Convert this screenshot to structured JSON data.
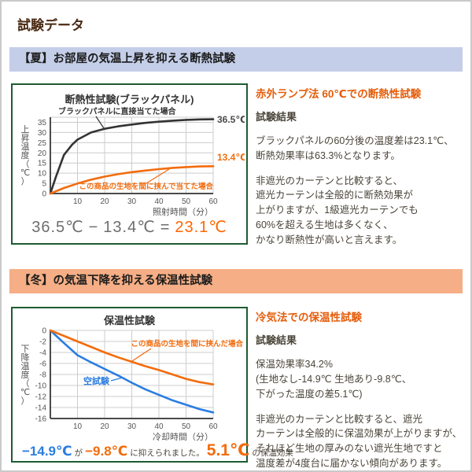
{
  "page": {
    "title": "試験データ"
  },
  "colors": {
    "accent_orange": "#f26c0d",
    "accent_blue": "#2a7de1",
    "summer_header_bg": "#c4cee8",
    "winter_header_bg": "#f5ae85",
    "chart_border_green": "#1e5b31",
    "title_brown": "#4a2a13"
  },
  "summer": {
    "header": "【夏】お部屋の気温上昇を抑える断熱試験",
    "formula": {
      "minuend": "36.5℃",
      "operator": "−",
      "subtrahend": "13.4℃",
      "equals": "=",
      "result": "23.1℃"
    },
    "aside": {
      "heading": "赤外ランプ法 60℃での断熱性試験",
      "result_label": "試験結果",
      "paragraph1": "ブラックパネルの60分後の温度差は23.1℃、\n断熱効果率は63.3%となります。",
      "paragraph2": "非遮光のカーテンと比較すると、\n遮光カーテンは全般的に断熱効果が\n上がりますが、1級遮光カーテンでも\n60%を超える生地は多くなく、\nかなり断熱性が高いと言えます。"
    }
  },
  "winter": {
    "header": "【冬】の気温下降を抑える保温性試験",
    "formula": {
      "value_blank": "−14.9℃",
      "particle": "が",
      "value_fabric": "−9.8℃",
      "verb": "に抑えられました。",
      "diff": "5.1℃",
      "suffix": "の保温効果"
    },
    "aside": {
      "heading": "冷気法での保温性試験",
      "result_label": "試験結果",
      "paragraph1": "保温効果率34.2%\n(生地なし-14.9℃ 生地あり-9.8℃、\n下がった温度の差5.1℃)",
      "paragraph2": "非遮光のカーテンと比較すると、遮光\nカーテンは全般的に保温効果が上がりますが、\nそれほど生地の厚みのない遮光生地ですと\n温度差が4度台に届かない傾向があります。"
    }
  },
  "chart_data": [
    {
      "type": "line",
      "title": "断熱性試験(ブラックパネル)",
      "xlabel": "照射時間（分）",
      "ylabel": "上昇温度（℃）",
      "xlim": [
        0,
        60
      ],
      "ylim": [
        0,
        37.5
      ],
      "xticks": [
        10,
        20,
        30,
        40,
        50,
        60
      ],
      "yticks": [
        0,
        5,
        10,
        15,
        20,
        25,
        30,
        35
      ],
      "grid": true,
      "legend_position": "inline-annotations",
      "series": [
        {
          "name": "ブラックパネルに直接当てた場合",
          "color": "#333333",
          "end_label": "36.5℃",
          "points": [
            [
              0,
              0
            ],
            [
              2,
              8
            ],
            [
              5,
              19
            ],
            [
              8,
              24
            ],
            [
              10,
              26.5
            ],
            [
              15,
              30
            ],
            [
              20,
              31.8
            ],
            [
              25,
              33
            ],
            [
              30,
              33.9
            ],
            [
              35,
              34.7
            ],
            [
              40,
              35.3
            ],
            [
              45,
              35.8
            ],
            [
              50,
              36.2
            ],
            [
              55,
              36.4
            ],
            [
              60,
              36.5
            ]
          ]
        },
        {
          "name": "この商品の生地を間に挟んで当てた場合",
          "color": "#f26c0d",
          "end_label": "13.4℃",
          "points": [
            [
              0,
              0
            ],
            [
              5,
              2.7
            ],
            [
              10,
              4.9
            ],
            [
              15,
              6.8
            ],
            [
              20,
              8.3
            ],
            [
              25,
              9.5
            ],
            [
              30,
              10.5
            ],
            [
              35,
              11.3
            ],
            [
              40,
              12.0
            ],
            [
              45,
              12.6
            ],
            [
              50,
              13.0
            ],
            [
              55,
              13.3
            ],
            [
              60,
              13.4
            ]
          ]
        }
      ]
    },
    {
      "type": "line",
      "title": "保温性試験",
      "xlabel": "冷却時間（分）",
      "ylabel": "下降温度（℃）",
      "xlim": [
        0,
        60
      ],
      "ylim": [
        -16,
        0
      ],
      "xticks": [
        10,
        20,
        30,
        40,
        50,
        60
      ],
      "yticks": [
        0,
        -2,
        -4,
        -6,
        -8,
        -10,
        -12,
        -14,
        -16
      ],
      "grid": true,
      "legend_position": "inline-annotations",
      "series": [
        {
          "name": "空試験",
          "color": "#2a7de1",
          "end_label": "-14.9℃",
          "points": [
            [
              0,
              0
            ],
            [
              5,
              -2.3
            ],
            [
              10,
              -4.5
            ],
            [
              15,
              -5.8
            ],
            [
              20,
              -7
            ],
            [
              25,
              -8.2
            ],
            [
              30,
              -9.5
            ],
            [
              35,
              -10.7
            ],
            [
              40,
              -11.7
            ],
            [
              45,
              -12.7
            ],
            [
              50,
              -13.5
            ],
            [
              55,
              -14.3
            ],
            [
              60,
              -14.9
            ]
          ]
        },
        {
          "name": "この商品の生地を間に挟んだ場合",
          "color": "#f26c0d",
          "end_label": "-9.8℃",
          "points": [
            [
              0,
              0
            ],
            [
              5,
              -1
            ],
            [
              10,
              -2
            ],
            [
              15,
              -3
            ],
            [
              20,
              -4
            ],
            [
              25,
              -4.9
            ],
            [
              30,
              -5.7
            ],
            [
              35,
              -6.5
            ],
            [
              40,
              -7.2
            ],
            [
              45,
              -8
            ],
            [
              50,
              -8.8
            ],
            [
              55,
              -9.4
            ],
            [
              60,
              -9.8
            ]
          ]
        }
      ]
    }
  ]
}
